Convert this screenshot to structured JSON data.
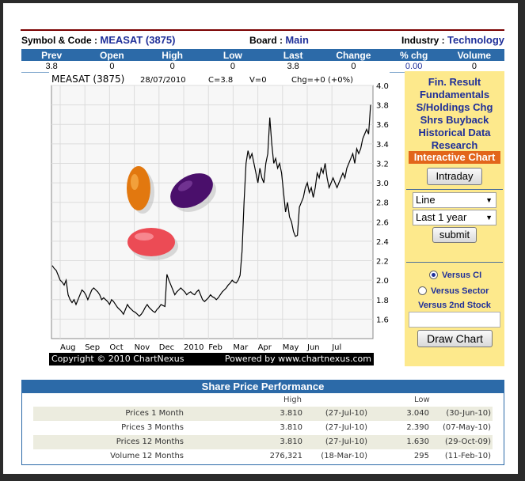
{
  "header": {
    "symbol_label": "Symbol & Code :",
    "symbol_value": "MEASAT (3875)",
    "board_label": "Board :",
    "board_value": "Main",
    "industry_label": "Industry :",
    "industry_value": "Technology"
  },
  "quote": {
    "columns": [
      "Prev",
      "Open",
      "High",
      "Low",
      "Last",
      "Change",
      "% chg",
      "Volume"
    ],
    "values": [
      "3.8",
      "0",
      "0",
      "0",
      "3.8",
      "0",
      "0.00",
      "0"
    ]
  },
  "chart_data": {
    "type": "line",
    "stock_name": "MEASAT (3875)",
    "date": "28/07/2010",
    "close_label": "C=3.8",
    "volume_label": "V=0",
    "change_label": "Chg=+0 (+0%)",
    "x_tick_labels": [
      "Aug",
      "Sep",
      "Oct",
      "Nov",
      "Dec",
      "2010",
      "Feb",
      "Mar",
      "Apr",
      "May",
      "Jun",
      "Jul"
    ],
    "y_tick_labels": [
      "4.0",
      "3.8",
      "3.6",
      "3.4",
      "3.2",
      "3.0",
      "2.8",
      "2.6",
      "2.4",
      "2.2",
      "2.0",
      "1.8",
      "1.6"
    ],
    "ylim": [
      1.4,
      4.0
    ],
    "grid": true,
    "series": [
      {
        "values": [
          2.15,
          2.12,
          2.1,
          2.05,
          2.0,
          1.98,
          1.95,
          2.0,
          1.85,
          1.8,
          1.77,
          1.8,
          1.75,
          1.8,
          1.85,
          1.9,
          1.88,
          1.85,
          1.8,
          1.85,
          1.9,
          1.92,
          1.9,
          1.88,
          1.85,
          1.8,
          1.82,
          1.8,
          1.78,
          1.75,
          1.8,
          1.78,
          1.75,
          1.72,
          1.7,
          1.68,
          1.65,
          1.7,
          1.75,
          1.72,
          1.7,
          1.68,
          1.67,
          1.65,
          1.63,
          1.65,
          1.68,
          1.72,
          1.75,
          1.72,
          1.7,
          1.68,
          1.67,
          1.7,
          1.72,
          1.75,
          1.74,
          1.73,
          2.06,
          2.0,
          1.95,
          1.9,
          1.85,
          1.88,
          1.9,
          1.92,
          1.9,
          1.88,
          1.85,
          1.87,
          1.88,
          1.86,
          1.85,
          1.88,
          1.9,
          1.85,
          1.8,
          1.78,
          1.8,
          1.82,
          1.85,
          1.83,
          1.82,
          1.8,
          1.82,
          1.85,
          1.88,
          1.9,
          1.92,
          1.95,
          1.97,
          2.0,
          1.98,
          1.97,
          2.0,
          2.05,
          2.3,
          2.8,
          3.2,
          3.33,
          3.25,
          3.3,
          3.2,
          3.1,
          3.0,
          3.15,
          3.05,
          3.0,
          3.2,
          3.3,
          3.67,
          3.4,
          3.2,
          3.25,
          3.15,
          3.2,
          3.1,
          2.9,
          2.7,
          2.8,
          2.65,
          2.6,
          2.5,
          2.45,
          2.46,
          2.75,
          2.8,
          2.85,
          2.95,
          3.0,
          2.9,
          2.95,
          2.85,
          2.95,
          3.1,
          3.05,
          3.15,
          3.1,
          3.2,
          3.05,
          2.95,
          3.0,
          3.05,
          3.0,
          2.95,
          3.0,
          3.05,
          3.1,
          3.05,
          3.15,
          3.2,
          3.25,
          3.3,
          3.2,
          3.35,
          3.3,
          3.35,
          3.45,
          3.5,
          3.55,
          3.5,
          3.8
        ]
      }
    ]
  },
  "chart_footer": {
    "copyright": "Copyright © 2010 ChartNexus",
    "powered": "Powered by www.chartnexus.com"
  },
  "right_panel": {
    "links": [
      "Fin. Result",
      "Fundamentals",
      "S/Holdings Chg",
      "Shrs Buyback",
      "Historical Data",
      "Research"
    ],
    "active_link": "Interactive Chart",
    "intraday_button": "Intraday",
    "chart_type_select": "Line",
    "period_select": "Last 1 year",
    "submit_button": "submit",
    "radio_ci": "Versus CI",
    "radio_sector": "Versus Sector",
    "second_stock_label": "Versus 2nd Stock",
    "draw_button": "Draw Chart"
  },
  "performance": {
    "title": "Share Price Performance",
    "high_header": "High",
    "low_header": "Low",
    "rows": [
      {
        "label": "Prices 1 Month",
        "high": "3.810",
        "high_date": "(27-Jul-10)",
        "low": "3.040",
        "low_date": "(30-Jun-10)"
      },
      {
        "label": "Prices 3 Months",
        "high": "3.810",
        "high_date": "(27-Jul-10)",
        "low": "2.390",
        "low_date": "(07-May-10)"
      },
      {
        "label": "Prices 12 Months",
        "high": "3.810",
        "high_date": "(27-Jul-10)",
        "low": "1.630",
        "low_date": "(29-Oct-09)"
      },
      {
        "label": "Volume 12 Months",
        "high": "276,321",
        "high_date": "(18-Mar-10)",
        "low": "295",
        "low_date": "(11-Feb-10)"
      }
    ]
  },
  "colors": {
    "header_blue": "#2c6aa8",
    "link_blue": "#1f2f99",
    "panel_yellow": "#fde98c",
    "active_orange": "#e2651a"
  }
}
